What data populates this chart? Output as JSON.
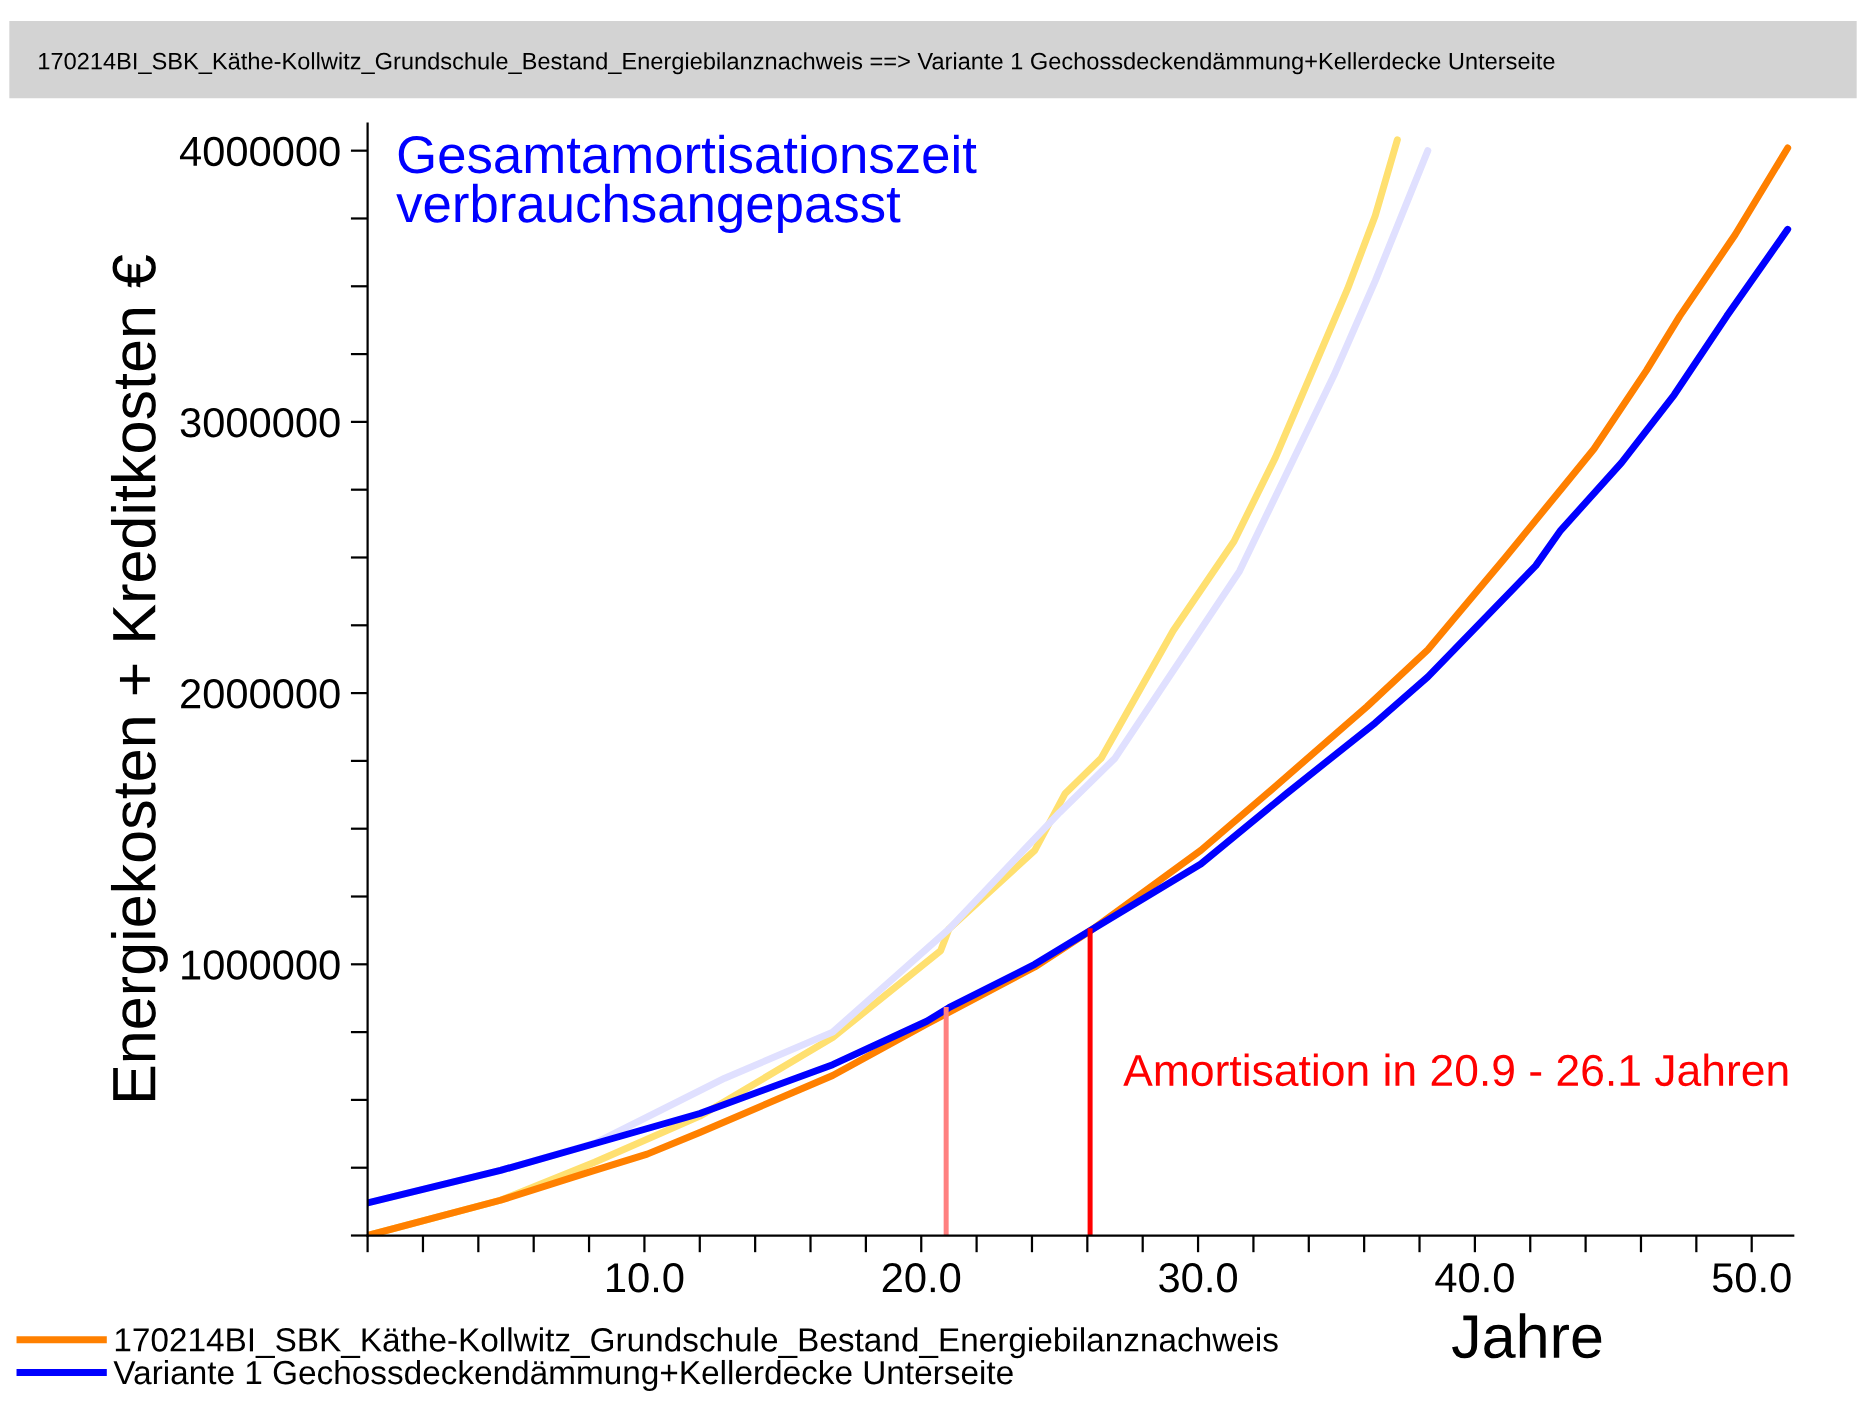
{
  "chart_data": {
    "type": "line",
    "title": "170214BI_SBK_Käthe-Kollwitz_Grundschule_Bestand_Energiebilanznachweis ==> Variante 1 Gechossdeckendämmung+Kellerdecke Unterseite",
    "xlabel": "Jahre",
    "ylabel": "Energiekosten + Kreditkosten €",
    "annotations": [
      "Gesamtamortisationszeit\nverbrauchsangepasst",
      "Amortisation in 20.9 - 26.1 Jahren"
    ],
    "series": [
      {
        "color": "#ffe070",
        "x": [
          0,
          4.8,
          8.2,
          12,
          16.8,
          20.7,
          21,
          24.1,
          25.2,
          26.5,
          29.1,
          31.3,
          32.8,
          35.4,
          36.4,
          37.2
        ],
        "values": [
          0,
          130000.0,
          270000.0,
          440000.0,
          730000.0,
          1050000.0,
          1130000.0,
          1420000.0,
          1630000.0,
          1760000.0,
          2230000.0,
          2560000.0,
          2870000.0,
          3490000.0,
          3760000.0,
          4040000.0
        ]
      },
      {
        "color": "#e0e0ff",
        "x": [
          0,
          4.8,
          8.2,
          12.9,
          16.8,
          21,
          25,
          25.7,
          27,
          31.5,
          34.9,
          36.4,
          38.3
        ],
        "values": [
          120000.0,
          240000.0,
          340000.0,
          580000.0,
          750000.0,
          1130000.0,
          1560000.0,
          1630000.0,
          1760000.0,
          2450000.0,
          3170000.0,
          3520000.0,
          4000000.0
        ]
      },
      {
        "name": "170214BI_SBK_Käthe-Kollwitz_Grundschule_Bestand_Energiebilanznachweis",
        "color": "#ff8000",
        "x": [
          0,
          4.8,
          8.2,
          10.1,
          12,
          16.8,
          20.2,
          24.1,
          26.2,
          30.1,
          32.5,
          36.1,
          38.3,
          41.1,
          43.1,
          44.3,
          46.2,
          47.4,
          49.4,
          51.3
        ],
        "values": [
          0,
          130000.0,
          240000.0,
          300000.0,
          380000.0,
          590000.0,
          780000.0,
          990000.0,
          1130000.0,
          1420000.0,
          1630000.0,
          1950000.0,
          2160000.0,
          2500000.0,
          2750000.0,
          2900000.0,
          3190000.0,
          3390000.0,
          3690000.0,
          4010000.0
        ]
      },
      {
        "name": "Variante 1 Gechossdeckendämmung+Kellerdecke Unterseite",
        "color": "#0000ff",
        "x": [
          0,
          4.8,
          7.9,
          12,
          16.8,
          20.2,
          21,
          24.1,
          26.2,
          30.1,
          33.2,
          36.4,
          38.3,
          42.2,
          43.1,
          45.3,
          47.2,
          49.1,
          51.3
        ],
        "values": [
          120000.0,
          240000.0,
          330000.0,
          450000.0,
          630000.0,
          790000.0,
          840000.0,
          1000000.0,
          1130000.0,
          1370000.0,
          1630000.0,
          1890000.0,
          2060000.0,
          2470000.0,
          2600000.0,
          2850000.0,
          3100000.0,
          3390000.0,
          3710000.0
        ]
      }
    ],
    "ref_lines": [
      {
        "axis": "x",
        "value": 20.9,
        "color": "#ff8080"
      },
      {
        "axis": "x",
        "value": 26.1,
        "color": "#ff0000"
      }
    ],
    "xlim": [
      0,
      51.5
    ],
    "ylim": [
      0,
      4100000
    ],
    "xticks": [
      {
        "value": 0,
        "label": null
      },
      {
        "value": 2,
        "label": null
      },
      {
        "value": 4,
        "label": null
      },
      {
        "value": 6,
        "label": null
      },
      {
        "value": 8,
        "label": null
      },
      {
        "value": 10,
        "label": "10.0"
      },
      {
        "value": 12,
        "label": null
      },
      {
        "value": 14,
        "label": null
      },
      {
        "value": 16,
        "label": null
      },
      {
        "value": 18,
        "label": null
      },
      {
        "value": 20,
        "label": "20.0"
      },
      {
        "value": 22,
        "label": null
      },
      {
        "value": 24,
        "label": null
      },
      {
        "value": 26,
        "label": null
      },
      {
        "value": 28,
        "label": null
      },
      {
        "value": 30,
        "label": "30.0"
      },
      {
        "value": 32,
        "label": null
      },
      {
        "value": 34,
        "label": null
      },
      {
        "value": 36,
        "label": null
      },
      {
        "value": 38,
        "label": null
      },
      {
        "value": 40,
        "label": "40.0"
      },
      {
        "value": 42,
        "label": null
      },
      {
        "value": 44,
        "label": null
      },
      {
        "value": 46,
        "label": null
      },
      {
        "value": 48,
        "label": null
      },
      {
        "value": 50,
        "label": "50.0"
      }
    ],
    "yticks": [
      {
        "value": 0,
        "label": null
      },
      {
        "value": 250000,
        "label": null
      },
      {
        "value": 500000,
        "label": null
      },
      {
        "value": 750000,
        "label": null
      },
      1000000,
      {
        "value": 1250000,
        "label": null
      },
      {
        "value": 1500000,
        "label": null
      },
      {
        "value": 1750000,
        "label": null
      },
      2000000,
      {
        "value": 2250000,
        "label": null
      },
      {
        "value": 2500000,
        "label": null
      },
      {
        "value": 2750000,
        "label": null
      },
      3000000,
      {
        "value": 3250000,
        "label": null
      },
      {
        "value": 3500000,
        "label": null
      },
      {
        "value": 3750000,
        "label": null
      },
      4000000
    ],
    "grid": false,
    "legend": "bottom left",
    "line_style": "solid"
  }
}
